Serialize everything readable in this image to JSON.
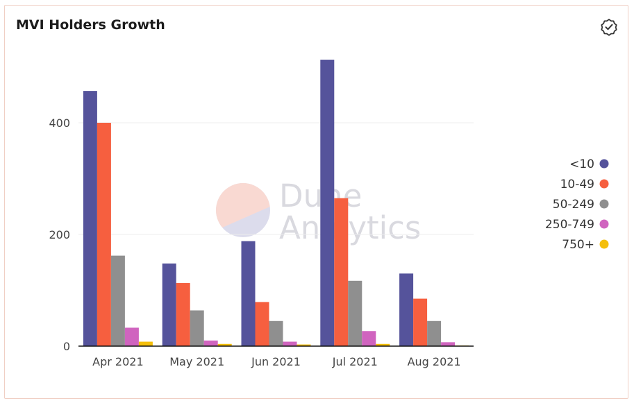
{
  "card": {
    "title": "MVI Holders Growth",
    "verified_icon": "check-badge-icon"
  },
  "watermark": {
    "line1": "Dune",
    "line2": "Analytics"
  },
  "colors": {
    "grid": "#ececec",
    "axis": "#111111",
    "watermark_top": "#f9d9d2",
    "watermark_bottom": "#dcdcec"
  },
  "chart_data": {
    "type": "bar",
    "title": "MVI Holders Growth",
    "xlabel": "",
    "ylabel": "",
    "categories": [
      "Apr 2021",
      "May 2021",
      "Jun 2021",
      "Jul 2021",
      "Aug 2021"
    ],
    "yticks": [
      0,
      200,
      400
    ],
    "ylim": [
      0,
      520
    ],
    "grid": true,
    "legend_position": "right",
    "series": [
      {
        "name": "<10",
        "color": "#55539b",
        "values": [
          457,
          148,
          188,
          513,
          130
        ]
      },
      {
        "name": "10-49",
        "color": "#f65f3f",
        "values": [
          400,
          113,
          79,
          265,
          85
        ]
      },
      {
        "name": "50-249",
        "color": "#8f8f8f",
        "values": [
          162,
          64,
          45,
          117,
          45
        ]
      },
      {
        "name": "250-749",
        "color": "#d064bf",
        "values": [
          33,
          10,
          8,
          27,
          7
        ]
      },
      {
        "name": "750+",
        "color": "#f4bf0b",
        "values": [
          8,
          4,
          3,
          4,
          1
        ]
      }
    ]
  }
}
